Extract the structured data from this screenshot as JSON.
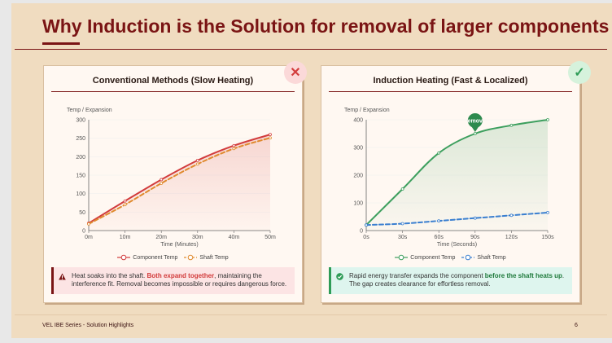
{
  "slide": {
    "title": "Why Induction is the Solution for removal of larger components",
    "footer_left": "VEL IBE Series - Solution Highlights",
    "page_number": "6"
  },
  "colors": {
    "accent": "#7a1414",
    "background": "#f0dcc0",
    "component_red": "#d23c3c",
    "shaft_orange": "#e08a2e",
    "component_green": "#3d9f5e",
    "shaft_blue": "#3a7fd0"
  },
  "left_card": {
    "title": "Conventional Methods (Slow Heating)",
    "badge_icon": "close-icon",
    "note_icon": "warning-icon",
    "note_before": "Heat soaks into the shaft. ",
    "note_highlight": "Both expand together",
    "note_after": ", maintaining the interference fit. Removal becomes impossible or requires dangerous force."
  },
  "right_card": {
    "title": "Induction Heating (Fast & Localized)",
    "badge_icon": "check-icon",
    "note_icon": "check-circle-icon",
    "note_before": "Rapid energy transfer expands the component ",
    "note_highlight": "before the shaft heats up",
    "note_after": ". The gap creates clearance for effortless removal.",
    "marker_label": "emov"
  },
  "chart_data": [
    {
      "type": "line",
      "ylabel": "Temp / Expansion",
      "xlabel": "Time (Minutes)",
      "categories": [
        "0m",
        "10m",
        "20m",
        "30m",
        "40m",
        "50m"
      ],
      "x": [
        0,
        10,
        20,
        30,
        40,
        50
      ],
      "ylim": [
        0,
        300
      ],
      "yticks": [
        0,
        50,
        100,
        150,
        200,
        250,
        300
      ],
      "area_fill": true,
      "series": [
        {
          "name": "Component Temp",
          "color": "#d23c3c",
          "dashed": false,
          "values": [
            20,
            80,
            138,
            190,
            230,
            260
          ]
        },
        {
          "name": "Shaft Temp",
          "color": "#e08a2e",
          "dashed": true,
          "values": [
            18,
            70,
            128,
            180,
            222,
            251
          ]
        }
      ]
    },
    {
      "type": "line",
      "ylabel": "Temp / Expansion",
      "xlabel": "Time (Seconds)",
      "categories": [
        "0s",
        "30s",
        "60s",
        "90s",
        "120s",
        "150s"
      ],
      "x": [
        0,
        30,
        60,
        90,
        120,
        150
      ],
      "ylim": [
        0,
        400
      ],
      "yticks": [
        0,
        100,
        200,
        300,
        400
      ],
      "area_fill": true,
      "series": [
        {
          "name": "Component Temp",
          "color": "#3d9f5e",
          "dashed": false,
          "values": [
            20,
            150,
            280,
            350,
            380,
            400
          ]
        },
        {
          "name": "Shaft Temp",
          "color": "#3a7fd0",
          "dashed": true,
          "values": [
            20,
            25,
            35,
            45,
            55,
            65
          ]
        }
      ],
      "marker": {
        "x": 90,
        "label": "emov"
      }
    }
  ]
}
